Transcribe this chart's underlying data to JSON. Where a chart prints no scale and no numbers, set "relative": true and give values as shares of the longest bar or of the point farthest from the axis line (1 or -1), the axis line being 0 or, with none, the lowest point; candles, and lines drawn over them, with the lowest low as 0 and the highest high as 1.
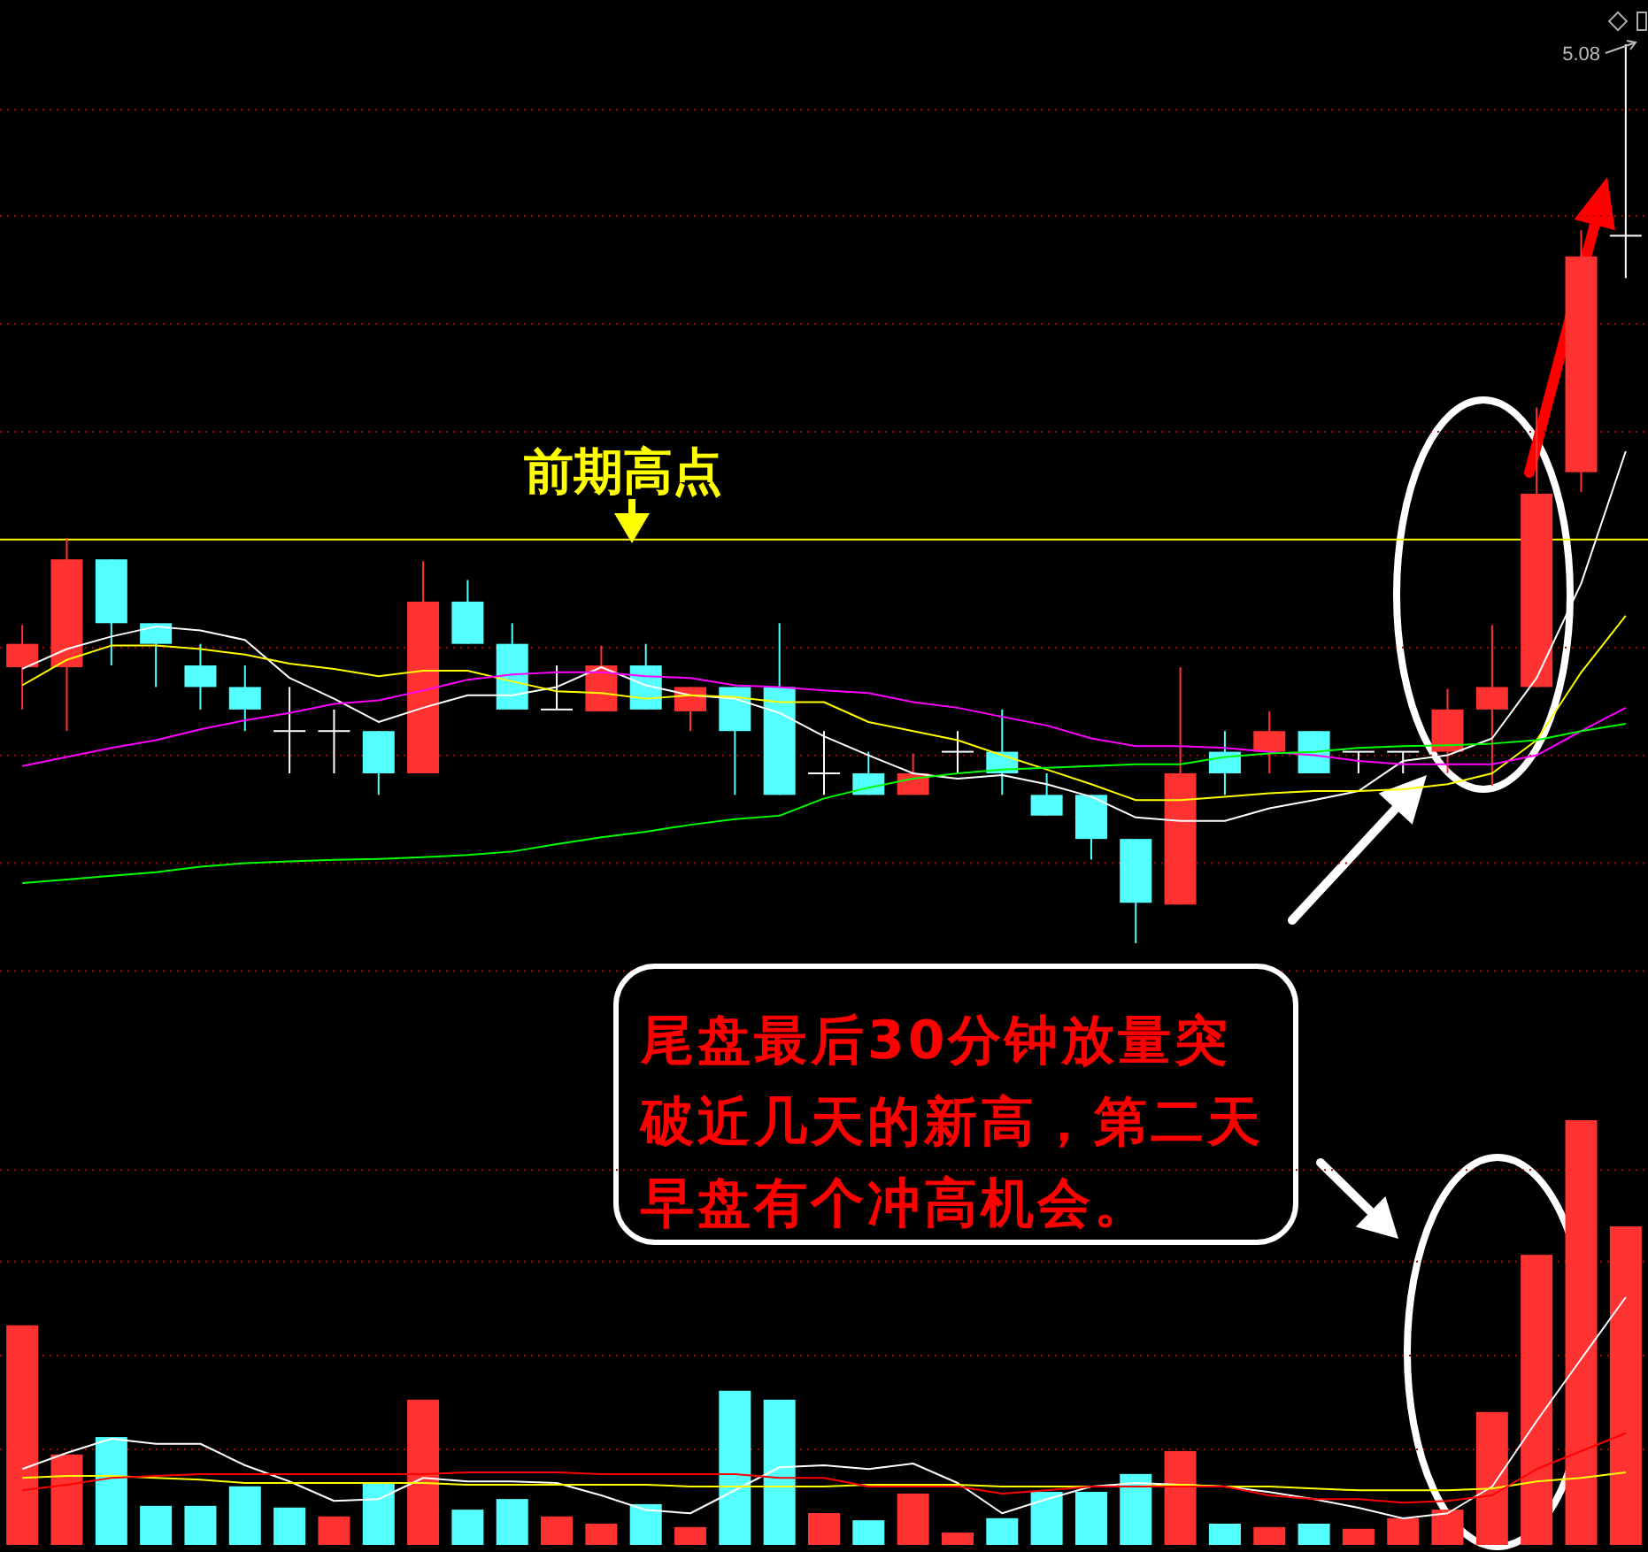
{
  "chart_data": [
    {
      "type": "candlestick",
      "relative": true,
      "categories": [
        null,
        null,
        null,
        null,
        null,
        null,
        null,
        null,
        null,
        null,
        null,
        null,
        null,
        null,
        null,
        null,
        null,
        null,
        null,
        null,
        null,
        null,
        null,
        null,
        null,
        null,
        null,
        null,
        null,
        null,
        null,
        null,
        null,
        null,
        null,
        null,
        null
      ],
      "ohlc": [
        [
          0.307,
          0.354,
          0.26,
          0.333
        ],
        [
          0.307,
          0.451,
          0.236,
          0.427
        ],
        [
          0.427,
          0.427,
          0.309,
          0.356
        ],
        [
          0.356,
          0.356,
          0.285,
          0.333
        ],
        [
          0.309,
          0.333,
          0.26,
          0.285
        ],
        [
          0.285,
          0.309,
          0.236,
          0.26
        ],
        [
          0.236,
          0.285,
          0.189,
          0.236
        ],
        [
          0.236,
          0.26,
          0.189,
          0.236
        ],
        [
          0.236,
          0.236,
          0.165,
          0.189
        ],
        [
          0.189,
          0.425,
          0.189,
          0.38
        ],
        [
          0.38,
          0.404,
          0.333,
          0.333
        ],
        [
          0.333,
          0.356,
          0.26,
          0.26
        ],
        [
          0.26,
          0.309,
          0.26,
          0.26
        ],
        [
          0.258,
          0.331,
          0.258,
          0.309
        ],
        [
          0.309,
          0.333,
          0.26,
          0.26
        ],
        [
          0.258,
          0.285,
          0.236,
          0.285
        ],
        [
          0.285,
          0.285,
          0.165,
          0.236
        ],
        [
          0.285,
          0.356,
          0.165,
          0.165
        ],
        [
          0.189,
          0.236,
          0.165,
          0.189
        ],
        [
          0.189,
          0.213,
          0.165,
          0.165
        ],
        [
          0.165,
          0.211,
          0.165,
          0.189
        ],
        [
          0.213,
          0.236,
          0.189,
          0.213
        ],
        [
          0.213,
          0.26,
          0.165,
          0.189
        ],
        [
          0.165,
          0.189,
          0.142,
          0.142
        ],
        [
          0.165,
          0.165,
          0.093,
          0.116
        ],
        [
          0.116,
          0.116,
          0,
          0.045
        ],
        [
          0.043,
          0.307,
          0.043,
          0.189
        ],
        [
          0.213,
          0.236,
          0.165,
          0.189
        ],
        [
          0.213,
          0.258,
          0.189,
          0.236
        ],
        [
          0.236,
          0.236,
          0.189,
          0.189
        ],
        [
          0.213,
          0.213,
          0.189,
          0.213
        ],
        [
          0.213,
          0.213,
          0.189,
          0.213
        ],
        [
          0.213,
          0.283,
          0.189,
          0.26
        ],
        [
          0.26,
          0.354,
          0.175,
          0.285
        ],
        [
          0.285,
          0.596,
          0.285,
          0.5
        ],
        [
          0.524,
          0.793,
          0.502,
          0.764
        ],
        [
          0.787,
          1,
          0.74,
          0.787
        ]
      ],
      "colors": [
        "#ff3232",
        "#ff3232",
        "#54ffff",
        "#54ffff",
        "#54ffff",
        "#54ffff",
        "#ffffff",
        "#ffffff",
        "#54ffff",
        "#ff3232",
        "#54ffff",
        "#54ffff",
        "#ffffff",
        "#ff3232",
        "#54ffff",
        "#ff3232",
        "#54ffff",
        "#54ffff",
        "#ffffff",
        "#54ffff",
        "#ff3232",
        "#ffffff",
        "#54ffff",
        "#54ffff",
        "#54ffff",
        "#54ffff",
        "#ff3232",
        "#54ffff",
        "#ff3232",
        "#54ffff",
        "#ffffff",
        "#ffffff",
        "#ff3232",
        "#ff3232",
        "#ff3232",
        "#ff3232",
        "#ffffff"
      ],
      "ref_lines": [
        {
          "axis": "y",
          "value": 0.449,
          "color": "#ffff00"
        },
        {
          "axis": "y",
          "value": 0.927,
          "color": "#b00000",
          "line_style": "dotted"
        },
        {
          "axis": "y",
          "value": 0.809,
          "color": "#b00000",
          "line_style": "dotted"
        },
        {
          "axis": "y",
          "value": 0.689,
          "color": "#b00000",
          "line_style": "dotted"
        },
        {
          "axis": "y",
          "value": 0.569,
          "color": "#b00000",
          "line_style": "dotted"
        },
        {
          "axis": "y",
          "value": 0.329,
          "color": "#b00000",
          "line_style": "dotted"
        },
        {
          "axis": "y",
          "value": 0.209,
          "color": "#b00000",
          "line_style": "dotted"
        },
        {
          "axis": "y",
          "value": 0.089,
          "color": "#b00000",
          "line_style": "dotted"
        },
        {
          "axis": "y",
          "value": -0.031,
          "color": "#b00000",
          "line_style": "dotted"
        }
      ],
      "annotations": [
        "前期高点",
        "5.08",
        "尾盘最后30分钟放量突破近几天的新高，第二天早盘有个冲高机会。"
      ]
    },
    {
      "type": "line",
      "relative": true,
      "categories": [
        null,
        null,
        null,
        null,
        null,
        null,
        null,
        null,
        null,
        null,
        null,
        null,
        null,
        null,
        null,
        null,
        null,
        null,
        null,
        null,
        null,
        null,
        null,
        null,
        null,
        null,
        null,
        null,
        null,
        null,
        null,
        null,
        null,
        null,
        null,
        null,
        null
      ],
      "series": [
        {
          "color": "#ffffff",
          "values": [
            0.496,
            0.542,
            0.571,
            0.594,
            0.585,
            0.563,
            0.475,
            0.427,
            0.373,
            0.406,
            0.435,
            0.435,
            0.454,
            0.5,
            0.458,
            0.435,
            0.427,
            0.394,
            0.34,
            0.296,
            0.254,
            0.242,
            0.25,
            0.229,
            0.2,
            0.152,
            0.144,
            0.144,
            0.173,
            0.192,
            0.213,
            0.283,
            0.296,
            0.335,
            0.475,
            0.694,
            1
          ]
        },
        {
          "color": "#ffff00",
          "values": [
            0.458,
            0.517,
            0.55,
            0.55,
            0.542,
            0.529,
            0.508,
            0.496,
            0.479,
            0.492,
            0.492,
            0.467,
            0.444,
            0.44,
            0.427,
            0.435,
            0.431,
            0.419,
            0.419,
            0.373,
            0.352,
            0.331,
            0.296,
            0.263,
            0.229,
            0.192,
            0.192,
            0.2,
            0.208,
            0.213,
            0.213,
            0.217,
            0.229,
            0.254,
            0.331,
            0.488,
            0.619
          ]
        },
        {
          "color": "#ff00ff",
          "values": [
            0.271,
            0.292,
            0.313,
            0.331,
            0.356,
            0.377,
            0.394,
            0.415,
            0.423,
            0.446,
            0.471,
            0.483,
            0.488,
            0.488,
            0.479,
            0.475,
            0.458,
            0.454,
            0.446,
            0.44,
            0.419,
            0.406,
            0.385,
            0.365,
            0.335,
            0.317,
            0.317,
            0.313,
            0.304,
            0.296,
            0.283,
            0.275,
            0.275,
            0.275,
            0.296,
            0.352,
            0.406
          ]
        },
        {
          "color": "#00ff00",
          "values": [
            0,
            0.008,
            0.017,
            0.025,
            0.038,
            0.046,
            0.05,
            0.054,
            0.056,
            0.06,
            0.065,
            0.073,
            0.09,
            0.106,
            0.119,
            0.135,
            0.148,
            0.156,
            0.196,
            0.221,
            0.242,
            0.254,
            0.263,
            0.267,
            0.271,
            0.275,
            0.275,
            0.292,
            0.3,
            0.304,
            0.313,
            0.317,
            0.319,
            0.323,
            0.331,
            0.352,
            0.369
          ]
        }
      ]
    },
    {
      "type": "bar",
      "relative": true,
      "ref_lines": [
        {
          "axis": "y",
          "value": 0.883,
          "color": "#b00000",
          "line_style": "dotted"
        },
        {
          "axis": "y",
          "value": 0.667,
          "color": "#b00000",
          "line_style": "dotted"
        },
        {
          "axis": "y",
          "value": 0.446,
          "color": "#b00000",
          "line_style": "dotted"
        },
        {
          "axis": "y",
          "value": 0.225,
          "color": "#b00000",
          "line_style": "dotted"
        }
      ],
      "categories": [
        null,
        null,
        null,
        null,
        null,
        null,
        null,
        null,
        null,
        null,
        null,
        null,
        null,
        null,
        null,
        null,
        null,
        null,
        null,
        null,
        null,
        null,
        null,
        null,
        null,
        null,
        null,
        null,
        null,
        null,
        null,
        null,
        null,
        null,
        null,
        null,
        null
      ],
      "values": [
        0.517,
        0.213,
        0.254,
        0.092,
        0.092,
        0.138,
        0.088,
        0.067,
        0.146,
        0.342,
        0.083,
        0.108,
        0.067,
        0.05,
        0.096,
        0.042,
        0.363,
        0.342,
        0.075,
        0.058,
        0.121,
        0.029,
        0.063,
        0.125,
        0.125,
        0.167,
        0.221,
        0.05,
        0.042,
        0.05,
        0.038,
        0.063,
        0.083,
        0.313,
        0.683,
        1,
        0.75
      ],
      "colors": [
        "#ff3232",
        "#ff3232",
        "#54ffff",
        "#54ffff",
        "#54ffff",
        "#54ffff",
        "#54ffff",
        "#ff3232",
        "#54ffff",
        "#ff3232",
        "#54ffff",
        "#54ffff",
        "#ff3232",
        "#ff3232",
        "#54ffff",
        "#ff3232",
        "#54ffff",
        "#54ffff",
        "#ff3232",
        "#54ffff",
        "#ff3232",
        "#ff3232",
        "#54ffff",
        "#54ffff",
        "#54ffff",
        "#54ffff",
        "#ff3232",
        "#54ffff",
        "#ff3232",
        "#54ffff",
        "#ff3232",
        "#ff3232",
        "#ff3232",
        "#ff3232",
        "#ff3232",
        "#ff3232",
        "#ff3232"
      ]
    },
    {
      "type": "line",
      "relative": true,
      "categories": [
        null,
        null,
        null,
        null,
        null,
        null,
        null,
        null,
        null,
        null,
        null,
        null,
        null,
        null,
        null,
        null,
        null,
        null,
        null,
        null,
        null,
        null,
        null,
        null,
        null,
        null,
        null,
        null,
        null,
        null,
        null,
        null,
        null,
        null,
        null,
        null,
        null
      ],
      "series": [
        {
          "color": "#ffffff",
          "values": [
            0.223,
            0.296,
            0.36,
            0.337,
            0.337,
            0.24,
            0.167,
            0.079,
            0.087,
            0.183,
            0.167,
            0.167,
            0.16,
            0.104,
            0.038,
            0.023,
            0.127,
            0.231,
            0.24,
            0.223,
            0.248,
            0.16,
            0.023,
            0.087,
            0.144,
            0.16,
            0.152,
            0.144,
            0.119,
            0.087,
            0.048,
            0,
            0.023,
            0.144,
            0.44,
            0.721,
            1
          ]
        },
        {
          "color": "#ffff00",
          "values": [
            0.183,
            0.192,
            0.192,
            0.183,
            0.175,
            0.16,
            0.16,
            0.16,
            0.16,
            0.16,
            0.152,
            0.152,
            0.152,
            0.152,
            0.152,
            0.144,
            0.144,
            0.144,
            0.144,
            0.152,
            0.152,
            0.152,
            0.144,
            0.144,
            0.144,
            0.144,
            0.152,
            0.144,
            0.144,
            0.135,
            0.127,
            0.127,
            0.127,
            0.135,
            0.167,
            0.183,
            0.208
          ]
        },
        {
          "color": "#ff0000",
          "values": [
            0.127,
            0.152,
            0.183,
            0.192,
            0.2,
            0.2,
            0.2,
            0.2,
            0.2,
            0.2,
            0.208,
            0.208,
            0.208,
            0.2,
            0.2,
            0.2,
            0.2,
            0.183,
            0.183,
            0.144,
            0.144,
            0.144,
            0.112,
            0.127,
            0.144,
            0.144,
            0.144,
            0.144,
            0.104,
            0.087,
            0.087,
            0.071,
            0.079,
            0.104,
            0.223,
            0.304,
            0.385
          ]
        }
      ]
    }
  ]
}
